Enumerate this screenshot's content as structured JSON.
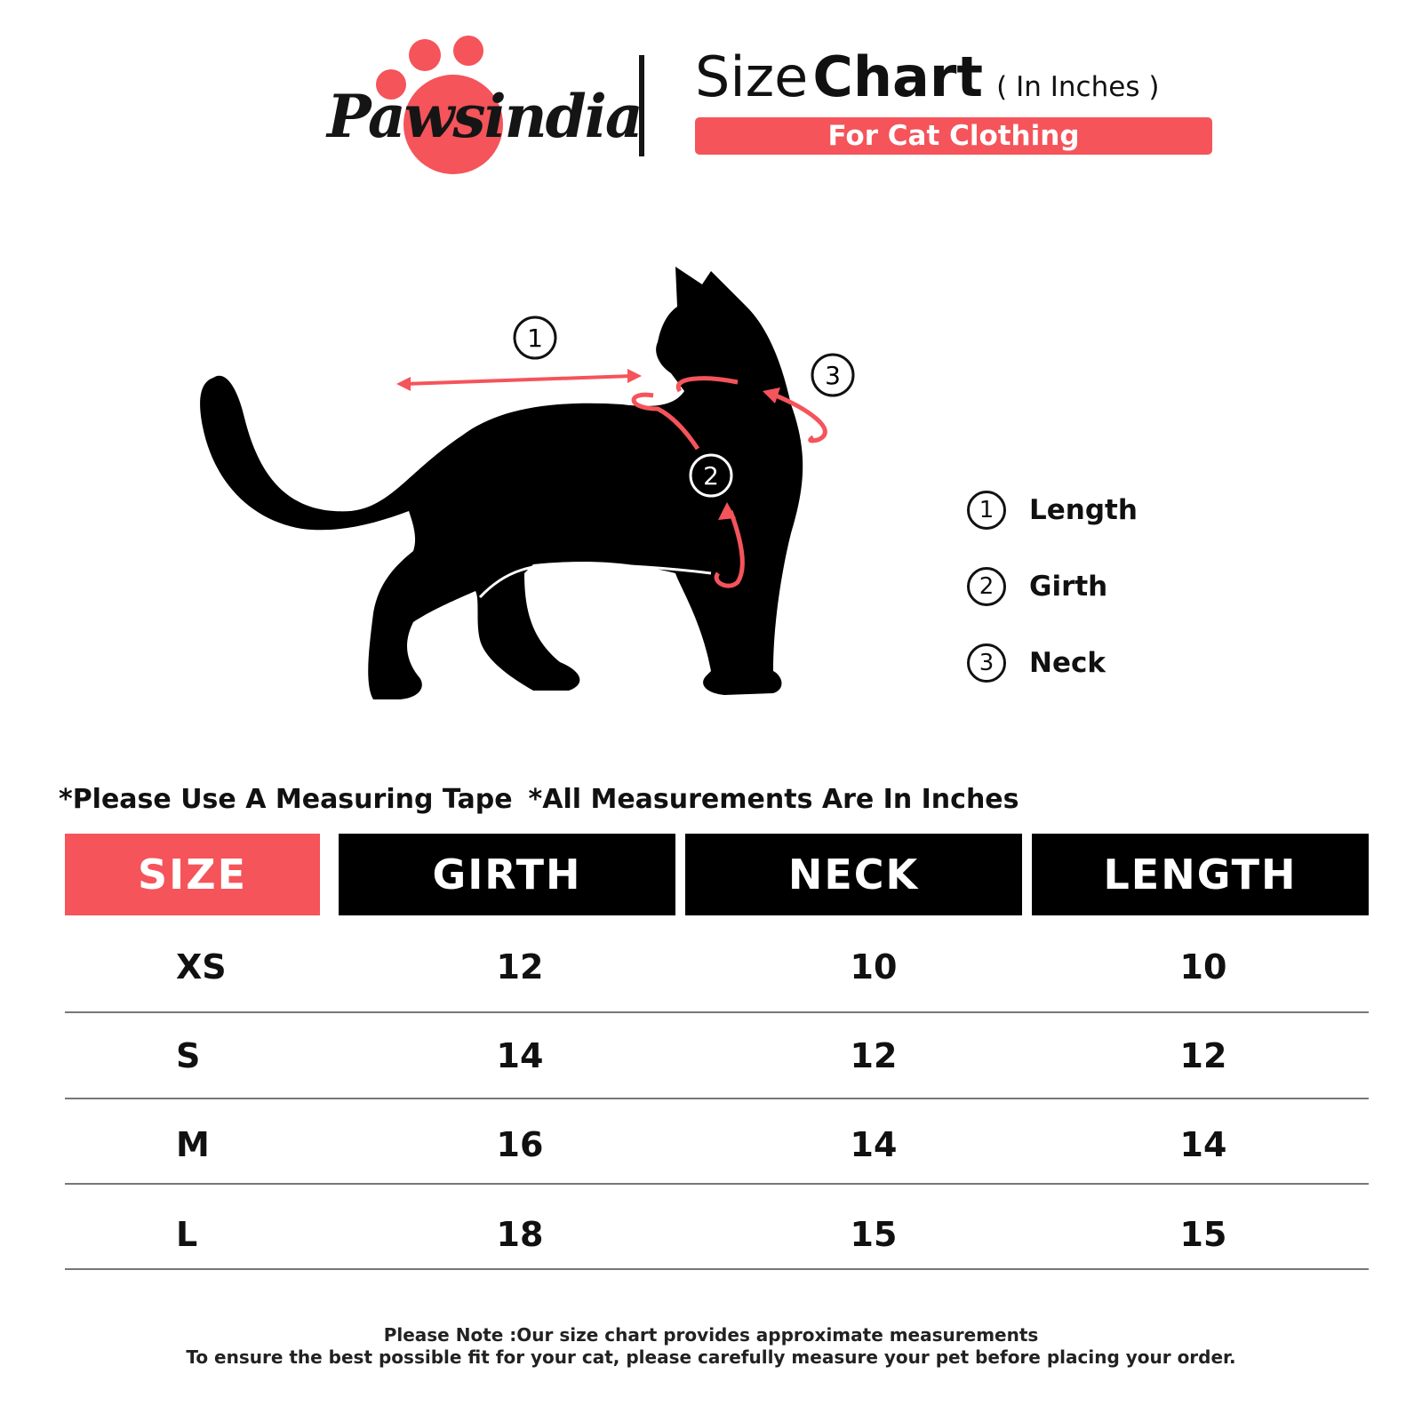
{
  "brand": {
    "logo_text": "Pawsindia",
    "accent_color": "#f4545a"
  },
  "header": {
    "title_light": "Size",
    "title_bold": "Chart",
    "unit": "( In Inches )",
    "subtitle": "For Cat Clothing"
  },
  "diagram": {
    "markers": [
      "1",
      "2",
      "3"
    ]
  },
  "legend": [
    {
      "num": "1",
      "label": "Length"
    },
    {
      "num": "2",
      "label": "Girth"
    },
    {
      "num": "3",
      "label": "Neck"
    }
  ],
  "notes": [
    "*Please Use A Measuring Tape",
    "*All Measurements Are In Inches"
  ],
  "table": {
    "headers": [
      "SIZE",
      "GIRTH",
      "NECK",
      "LENGTH"
    ],
    "rows": [
      [
        "XS",
        "12",
        "10",
        "10"
      ],
      [
        "S",
        "14",
        "12",
        "12"
      ],
      [
        "M",
        "16",
        "14",
        "14"
      ],
      [
        "L",
        "18",
        "15",
        "15"
      ]
    ]
  },
  "footer": [
    "Please Note :Our size chart provides approximate measurements",
    "To ensure the best possible fit for your cat, please carefully measure your pet before placing your order."
  ]
}
